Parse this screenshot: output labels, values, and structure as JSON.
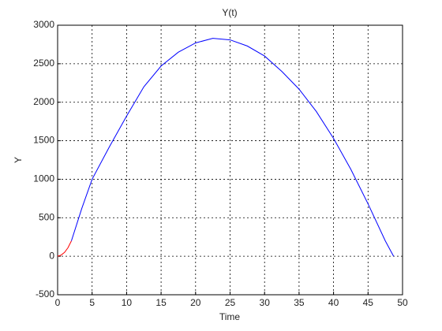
{
  "chart_data": {
    "type": "line",
    "title": "Y(t)",
    "x_label": "Time",
    "y_label": "Y",
    "series": [
      {
        "color": "#ff0000",
        "x": [
          0,
          0.5,
          1,
          1.5,
          2
        ],
        "values": [
          0,
          15,
          50,
          110,
          200
        ]
      },
      {
        "color": "#0000ff",
        "x": [
          2,
          3.5,
          5,
          7.5,
          10,
          12.5,
          15,
          17.5,
          20,
          22.5,
          25,
          27.5,
          30,
          32.5,
          35,
          37.5,
          40,
          42.5,
          45,
          47.5,
          48.7
        ],
        "values": [
          200,
          620,
          1000,
          1420,
          1820,
          2200,
          2470,
          2650,
          2770,
          2830,
          2810,
          2730,
          2600,
          2400,
          2170,
          1880,
          1530,
          1130,
          680,
          200,
          0
        ]
      }
    ],
    "xlim": [
      0,
      50
    ],
    "xticks": [
      0,
      5,
      10,
      15,
      20,
      25,
      30,
      35,
      40,
      45,
      50
    ],
    "ylim": [
      -500,
      3000
    ],
    "yticks": [
      -500,
      0,
      500,
      1000,
      1500,
      2000,
      2500,
      3000
    ],
    "grid": true
  }
}
